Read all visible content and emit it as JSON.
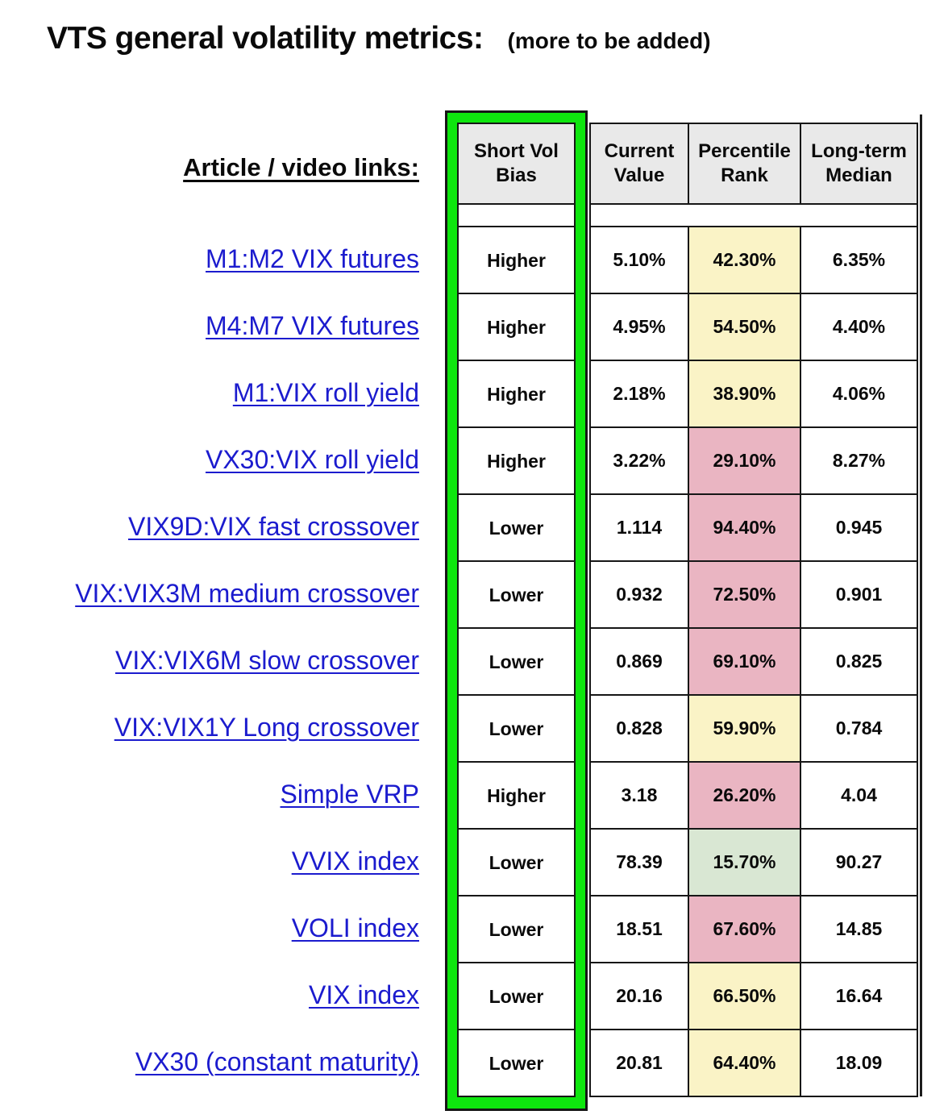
{
  "title": {
    "main": "VTS general volatility metrics:",
    "note": "(more to be added)"
  },
  "links_heading": "Article / video links:",
  "table": {
    "headers": [
      "Short Vol\nBias",
      "Current\nValue",
      "Percentile\nRank",
      "Long-term\nMedian"
    ]
  },
  "rows": [
    {
      "link": "M1:M2 VIX futures",
      "bias": "Higher",
      "current": "5.10%",
      "percentile": "42.30%",
      "percentile_color": "yellow",
      "median": "6.35%"
    },
    {
      "link": "M4:M7 VIX futures",
      "bias": "Higher",
      "current": "4.95%",
      "percentile": "54.50%",
      "percentile_color": "yellow",
      "median": "4.40%"
    },
    {
      "link": "M1:VIX roll yield",
      "bias": "Higher",
      "current": "2.18%",
      "percentile": "38.90%",
      "percentile_color": "yellow",
      "median": "4.06%"
    },
    {
      "link": "VX30:VIX roll yield",
      "bias": "Higher",
      "current": "3.22%",
      "percentile": "29.10%",
      "percentile_color": "pink",
      "median": "8.27%"
    },
    {
      "link": "VIX9D:VIX fast crossover",
      "bias": "Lower",
      "current": "1.114",
      "percentile": "94.40%",
      "percentile_color": "pink",
      "median": "0.945"
    },
    {
      "link": "VIX:VIX3M medium crossover",
      "bias": "Lower",
      "current": "0.932",
      "percentile": "72.50%",
      "percentile_color": "pink",
      "median": "0.901"
    },
    {
      "link": "VIX:VIX6M slow crossover",
      "bias": "Lower",
      "current": "0.869",
      "percentile": "69.10%",
      "percentile_color": "pink",
      "median": "0.825"
    },
    {
      "link": "VIX:VIX1Y Long crossover",
      "bias": "Lower",
      "current": "0.828",
      "percentile": "59.90%",
      "percentile_color": "yellow",
      "median": "0.784"
    },
    {
      "link": "Simple VRP",
      "bias": "Higher",
      "current": "3.18",
      "percentile": "26.20%",
      "percentile_color": "pink",
      "median": "4.04"
    },
    {
      "link": "VVIX index",
      "bias": "Lower",
      "current": "78.39",
      "percentile": "15.70%",
      "percentile_color": "green",
      "median": "90.27"
    },
    {
      "link": "VOLI index",
      "bias": "Lower",
      "current": "18.51",
      "percentile": "67.60%",
      "percentile_color": "pink",
      "median": "14.85"
    },
    {
      "link": "VIX index",
      "bias": "Lower",
      "current": "20.16",
      "percentile": "66.50%",
      "percentile_color": "yellow",
      "median": "16.64"
    },
    {
      "link": "VX30 (constant maturity)",
      "bias": "Lower",
      "current": "20.81",
      "percentile": "64.40%",
      "percentile_color": "yellow",
      "median": "18.09"
    }
  ],
  "colors": {
    "percentile_yellow": "#faf3c6",
    "percentile_pink": "#eab5c2",
    "percentile_green": "#d9e7d3",
    "header_bg": "#e9e9e9",
    "highlight_green": "#0ee60e",
    "link_blue": "#1b1bce",
    "border_black": "#161616"
  }
}
